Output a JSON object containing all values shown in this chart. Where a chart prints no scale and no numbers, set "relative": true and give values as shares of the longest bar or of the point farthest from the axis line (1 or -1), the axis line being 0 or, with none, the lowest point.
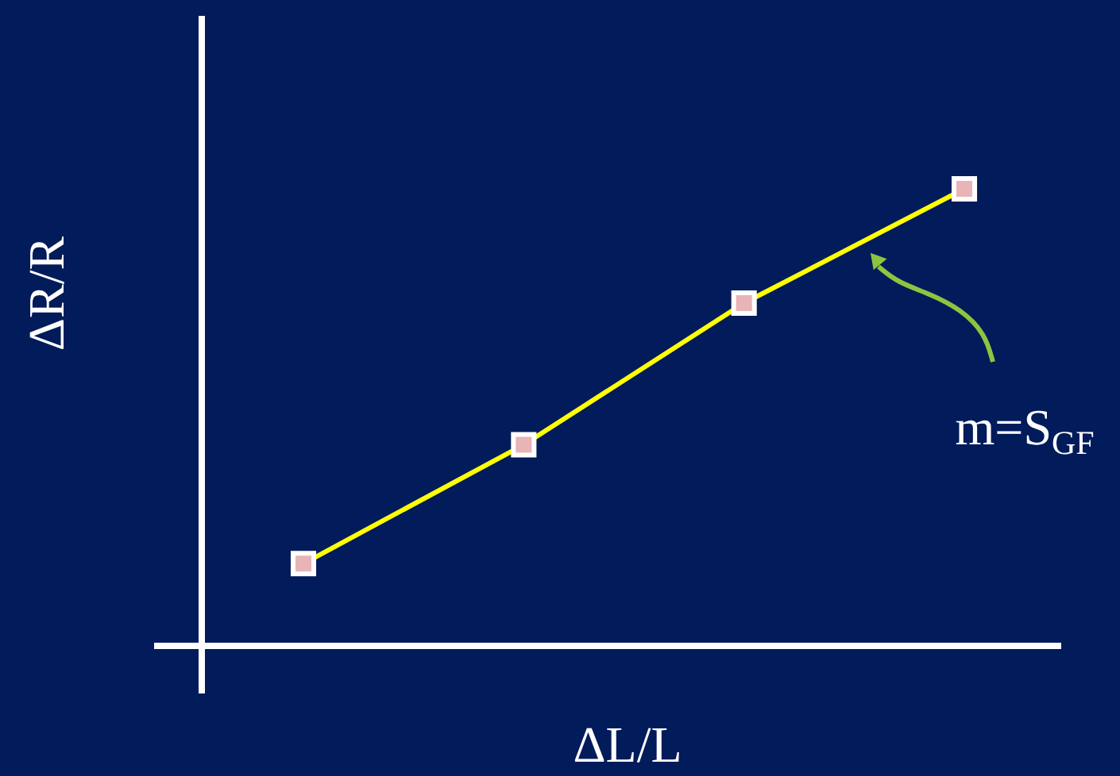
{
  "chart_data": {
    "type": "line",
    "relative": true,
    "xlabel": "ΔL/L",
    "ylabel": "ΔR/R",
    "categories": [
      null,
      null,
      null,
      null
    ],
    "series": [
      {
        "color": "#ffff00",
        "values": [
          0.18,
          0.44,
          0.75,
          1.0
        ]
      }
    ],
    "marker": "square",
    "line_style": "solid",
    "annotations": [
      "m=S$_{GF}$"
    ]
  }
}
